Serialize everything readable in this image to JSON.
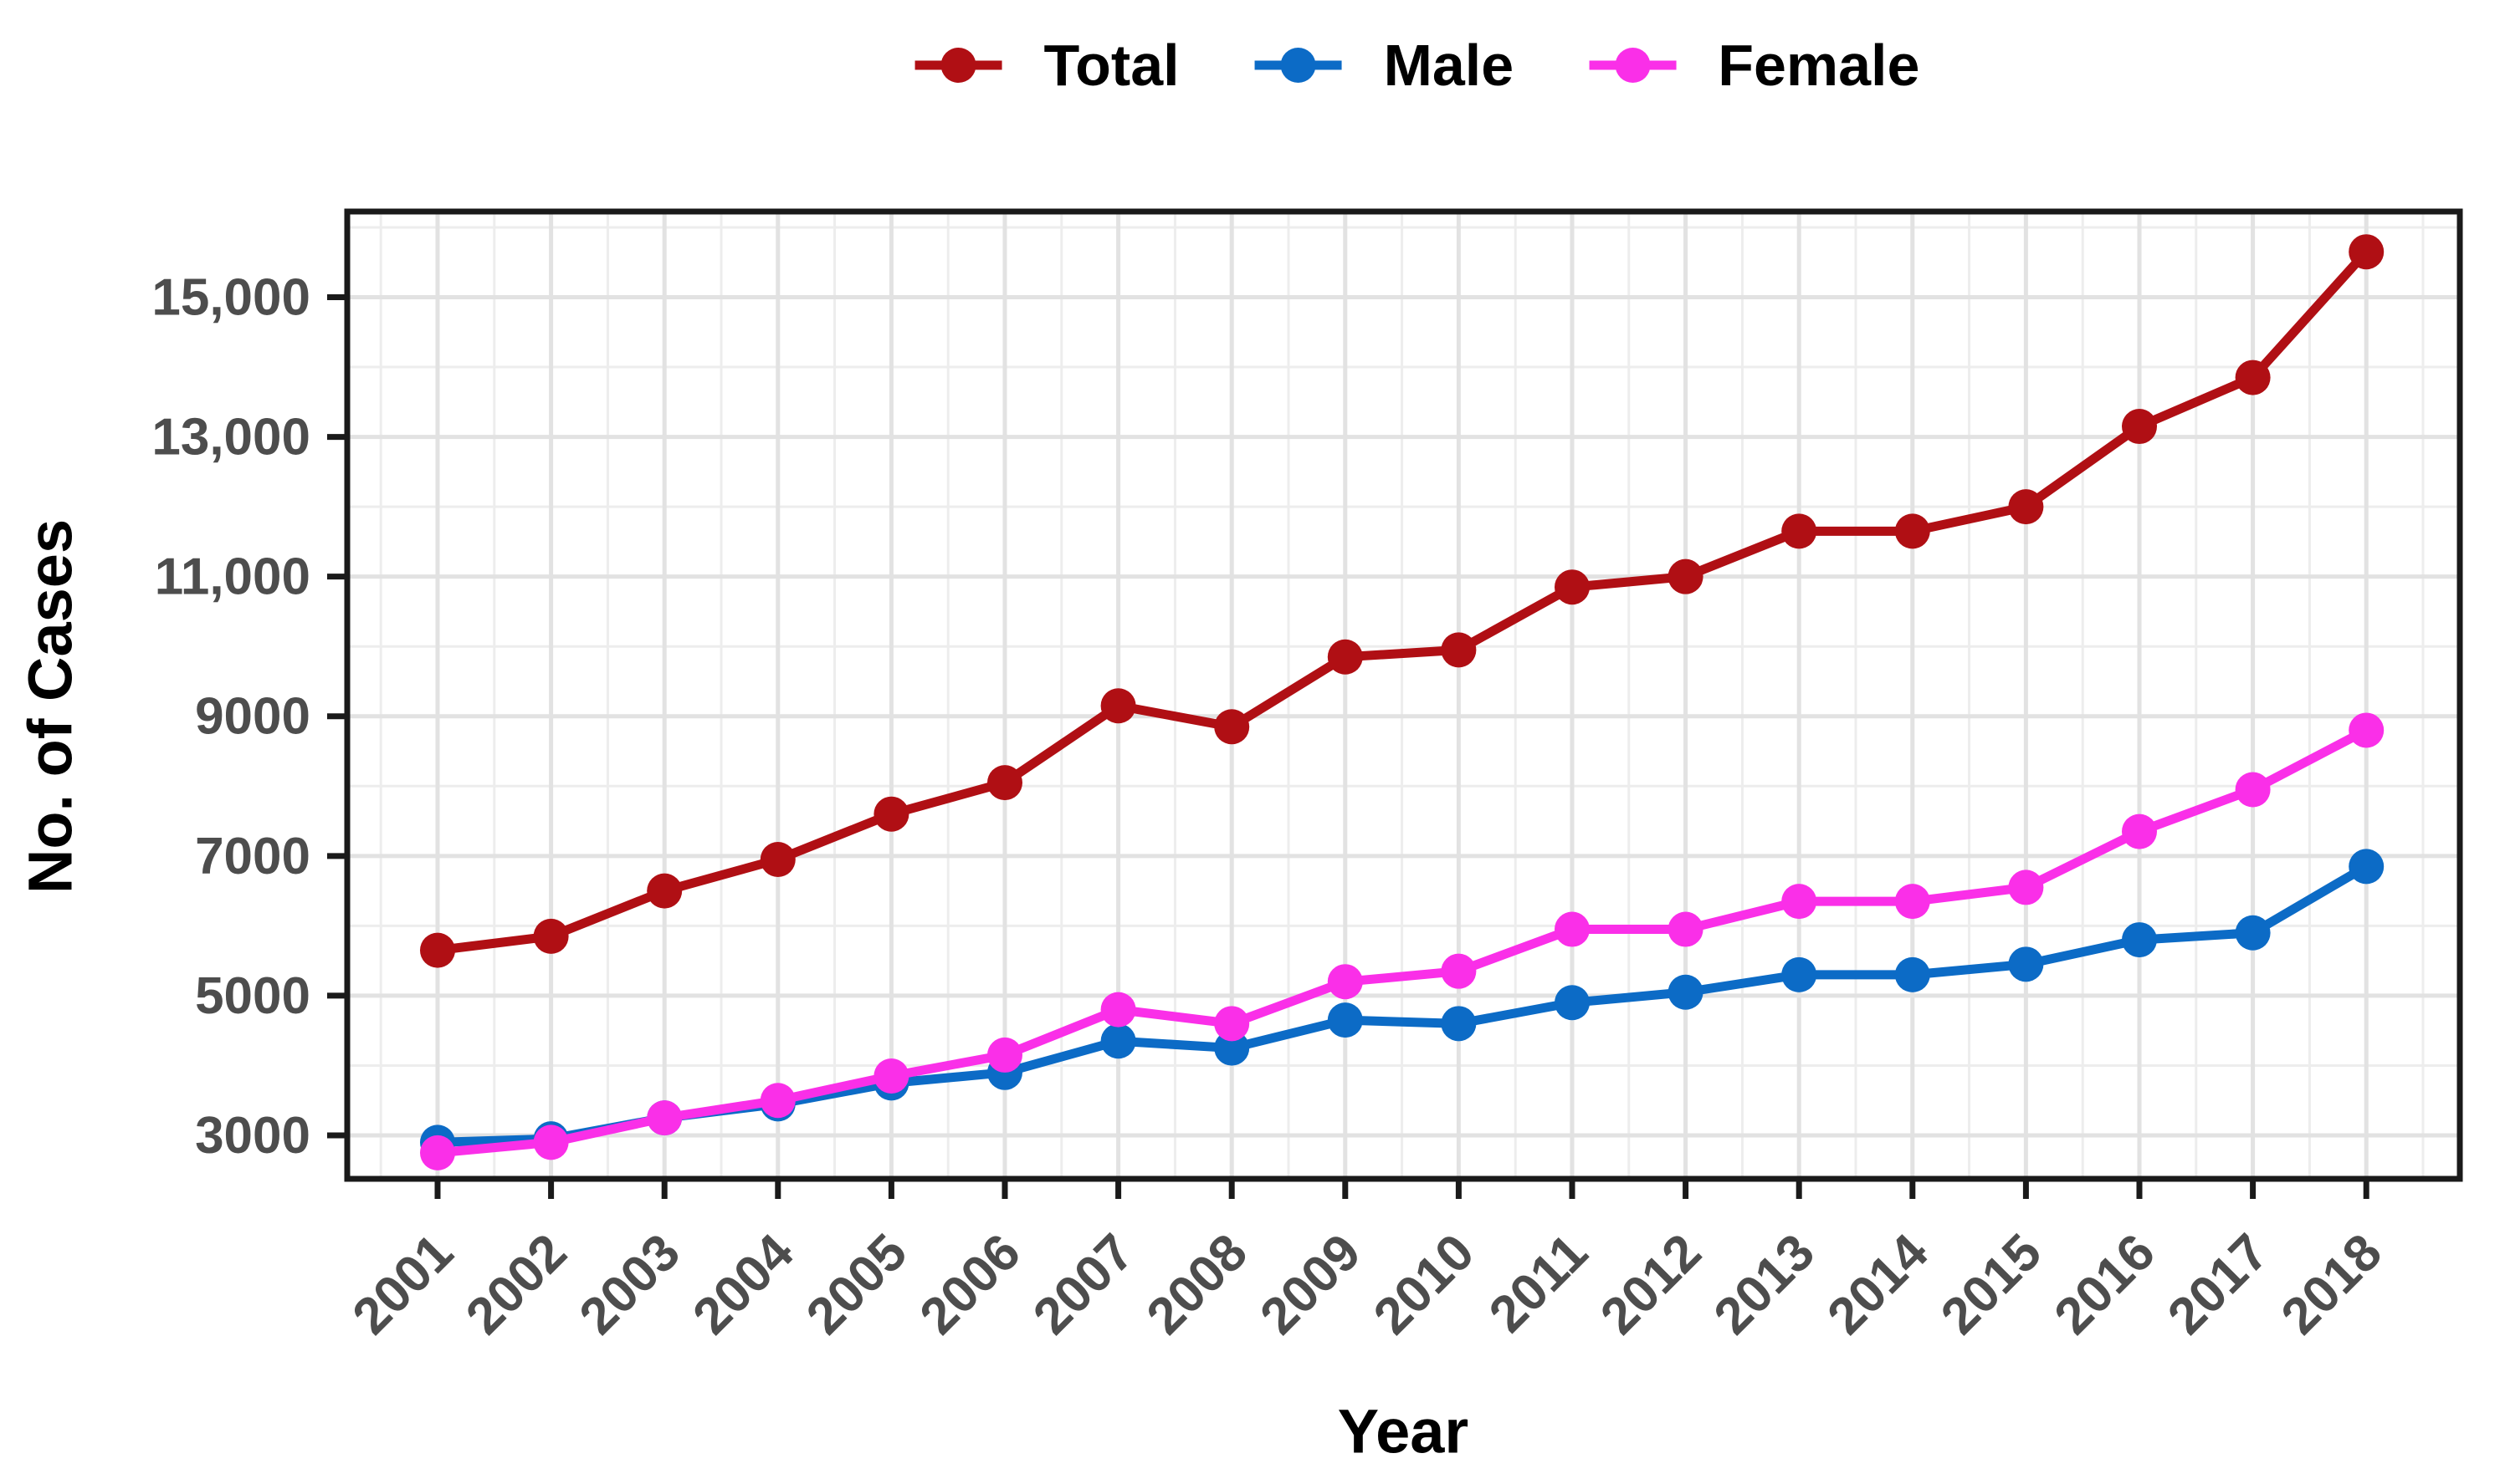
{
  "figure": {
    "background": "#ffffff",
    "axis_text_color": "#4d4d4d",
    "axis_line_color": "#1a1a1a",
    "grid_major_color": "#e2e2e2",
    "grid_minor_color": "#ededed"
  },
  "chart_data": {
    "type": "line",
    "title": "",
    "xlabel": "Year",
    "ylabel": "No. of Cases",
    "legend_position": "top-center",
    "grid": "major and minor, light grey on white, black panel border",
    "x": [
      2001,
      2002,
      2003,
      2004,
      2005,
      2006,
      2007,
      2008,
      2009,
      2010,
      2011,
      2012,
      2013,
      2014,
      2015,
      2016,
      2017,
      2018
    ],
    "xtick_labels": [
      "2001",
      "2002",
      "2003",
      "2004",
      "2005",
      "2006",
      "2007",
      "2008",
      "2009",
      "2010",
      "2011",
      "2012",
      "2013",
      "2014",
      "2015",
      "2016",
      "2017",
      "2018"
    ],
    "xtick_angle_deg": 45,
    "ylim": [
      2380,
      16230
    ],
    "yticks": [
      {
        "value": 3000,
        "label": "3000"
      },
      {
        "value": 5000,
        "label": "5000"
      },
      {
        "value": 7000,
        "label": "7000"
      },
      {
        "value": 9000,
        "label": "9000"
      },
      {
        "value": 11000,
        "label": "11,000"
      },
      {
        "value": 13000,
        "label": "13,000"
      },
      {
        "value": 15000,
        "label": "15,000"
      }
    ],
    "yminor": [
      4000,
      6000,
      8000,
      10000,
      12000,
      14000,
      16000
    ],
    "series": [
      {
        "name": "Total",
        "color": "#B00F14",
        "values": [
          5650,
          5850,
          6500,
          6950,
          7600,
          8050,
          9150,
          8850,
          9850,
          9950,
          10850,
          11000,
          11650,
          11650,
          12000,
          13150,
          13850,
          15650
        ]
      },
      {
        "name": "Male",
        "color": "#0C6BC6",
        "values": [
          2900,
          2950,
          3250,
          3450,
          3750,
          3900,
          4350,
          4250,
          4650,
          4600,
          4900,
          5050,
          5300,
          5300,
          5450,
          5800,
          5900,
          6850
        ]
      },
      {
        "name": "Female",
        "color": "#FA2FE8",
        "values": [
          2750,
          2900,
          3250,
          3500,
          3850,
          4150,
          4800,
          4600,
          5200,
          5350,
          5950,
          5950,
          6350,
          6350,
          6550,
          7350,
          7950,
          8800
        ]
      }
    ]
  }
}
